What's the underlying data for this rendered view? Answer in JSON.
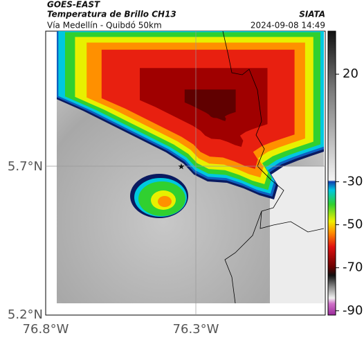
{
  "header": {
    "title": "GOES-EAST",
    "subtitle": "Temperatura de Brillo CH13",
    "source": "SIATA",
    "region": "Vía Medellín - Quibdó 50km",
    "timestamp": "2024-09-08 14:49"
  },
  "map": {
    "lat_ticks": [
      "5.7°N",
      "5.2°N"
    ],
    "lon_ticks": [
      "76.8°W",
      "76.3°W"
    ]
  },
  "colorbar": {
    "range": [
      -92,
      40
    ],
    "ticks": [
      20,
      -30,
      -50,
      -70,
      -90
    ]
  }
}
